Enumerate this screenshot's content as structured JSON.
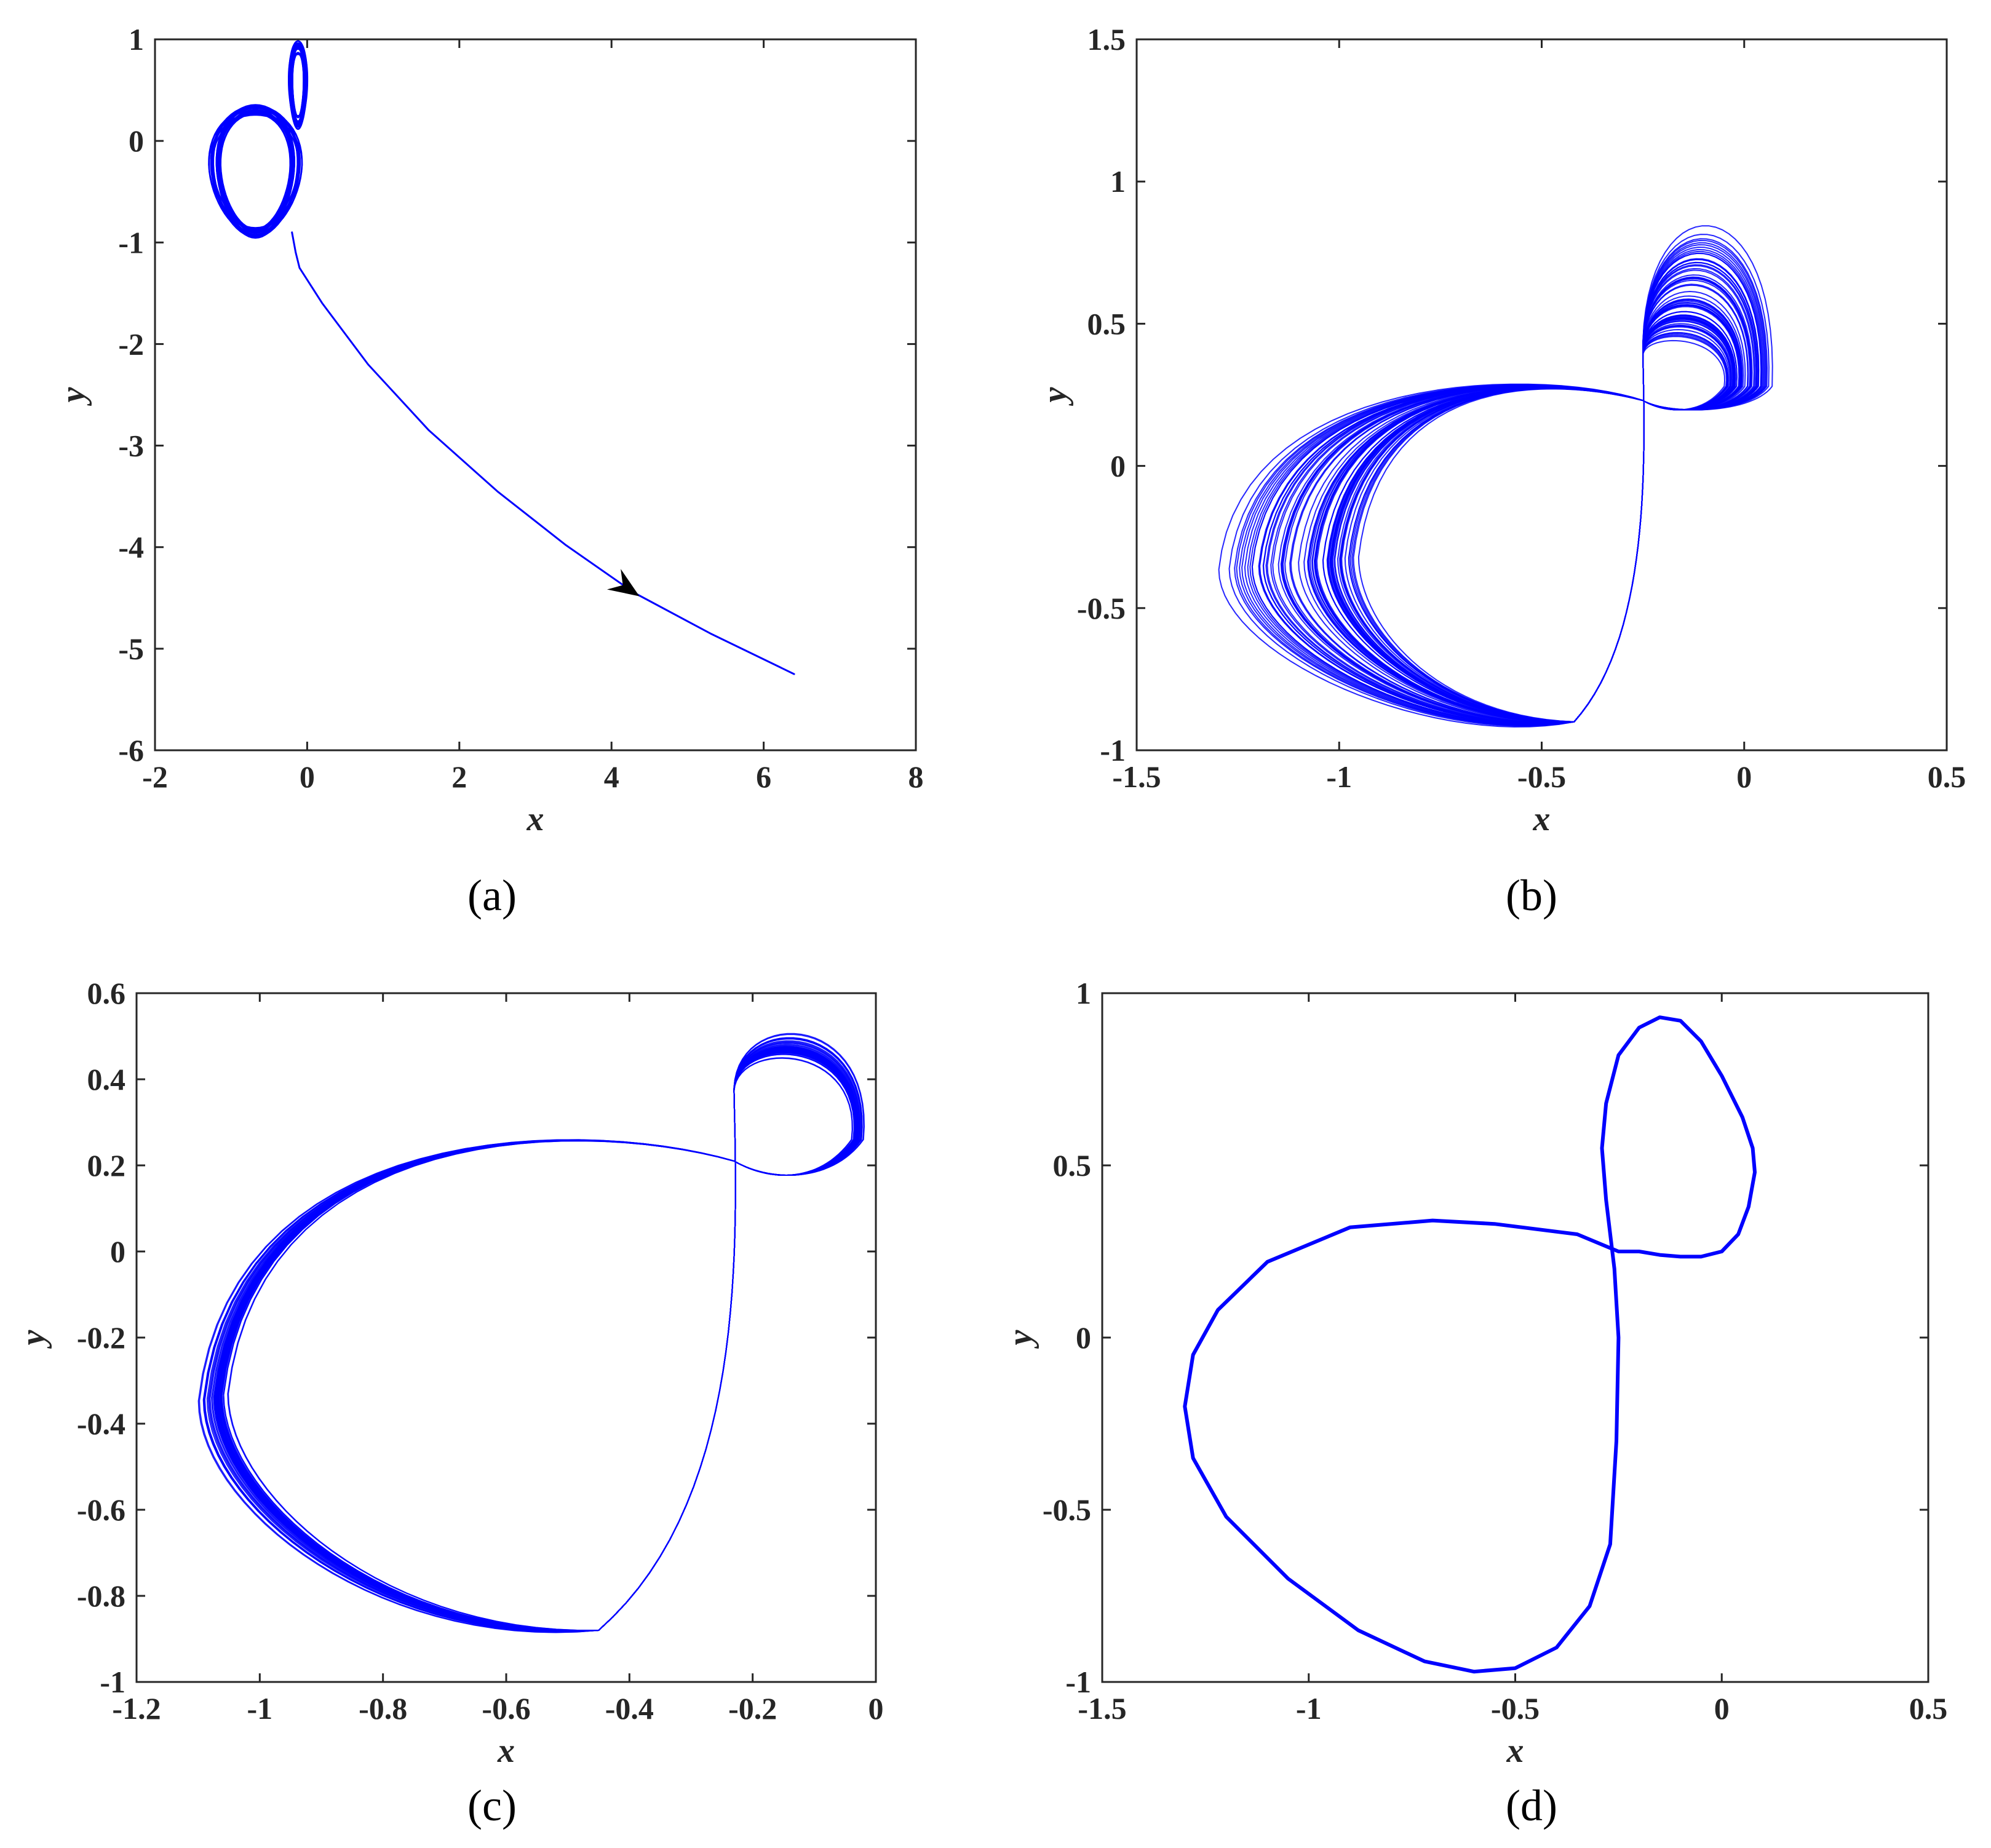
{
  "colors": {
    "series": "#0000ff",
    "axis": "#262626",
    "arrow": "#000000"
  },
  "chart_data": [
    {
      "id": "a",
      "type": "line",
      "panel_label": "(a)",
      "xlabel": "x",
      "ylabel": "y",
      "xlim": [
        -2,
        8
      ],
      "ylim": [
        -6,
        1
      ],
      "xticks": [
        -2,
        0,
        2,
        4,
        6,
        8
      ],
      "yticks": [
        -6,
        -5,
        -4,
        -3,
        -2,
        -1,
        0,
        1
      ],
      "annotations": [
        {
          "type": "arrow",
          "at": [
            4.3,
            -4.45
          ],
          "direction": "along-trajectory"
        }
      ],
      "series": [
        {
          "kind": "attractor-band",
          "loops": [
            {
              "center": [
                -0.68,
                -0.3
              ],
              "rx": [
                0.45,
                0.62
              ],
              "ry": [
                0.55,
                0.66
              ],
              "phase": 0.0
            },
            {
              "center": [
                -0.12,
                0.55
              ],
              "rx": [
                0.07,
                0.13
              ],
              "ry": [
                0.3,
                0.44
              ],
              "phase": 0.0
            }
          ]
        },
        {
          "kind": "transient",
          "x": [
            -0.2,
            -0.15,
            -0.1,
            0.2,
            0.8,
            1.6,
            2.5,
            3.4,
            4.3,
            5.3,
            6.4
          ],
          "y": [
            -0.9,
            -1.1,
            -1.25,
            -1.6,
            -2.2,
            -2.85,
            -3.45,
            -3.98,
            -4.45,
            -4.85,
            -5.25
          ]
        }
      ]
    },
    {
      "id": "b",
      "type": "line",
      "panel_label": "(b)",
      "xlabel": "x",
      "ylabel": "y",
      "xlim": [
        -1.5,
        0.5
      ],
      "ylim": [
        -1,
        1.5
      ],
      "xticks": [
        -1.5,
        -1,
        -0.5,
        0,
        0.5
      ],
      "yticks": [
        -1,
        -0.5,
        0,
        0.5,
        1,
        1.5
      ],
      "series": [
        {
          "kind": "attractor-band",
          "left_lobe": {
            "xmin": [
              -1.3,
              -0.95
            ],
            "ymin": [
              -0.97,
              -0.85
            ],
            "top": [
              0.34,
              0.31
            ]
          },
          "right_lobe": {
            "xmax": [
              0.07,
              -0.05
            ],
            "ymax": [
              1.0,
              0.45
            ]
          }
        }
      ]
    },
    {
      "id": "c",
      "type": "line",
      "panel_label": "(c)",
      "xlabel": "x",
      "ylabel": "y",
      "xlim": [
        -1.2,
        0
      ],
      "ylim": [
        -1,
        0.6
      ],
      "xticks": [
        -1.2,
        -1,
        -0.8,
        -0.6,
        -0.4,
        -0.2,
        0
      ],
      "yticks": [
        -1,
        -0.8,
        -0.6,
        -0.4,
        -0.2,
        0,
        0.2,
        0.4,
        0.6
      ],
      "series": [
        {
          "kind": "attractor-band",
          "left_lobe": {
            "xmin": [
              -1.1,
              -1.05
            ],
            "ymin": [
              -0.9,
              -0.86
            ],
            "top": [
              0.305,
              0.3
            ]
          },
          "right_lobe": {
            "xmax": [
              -0.02,
              -0.04
            ],
            "ymax": [
              0.55,
              0.47
            ]
          }
        }
      ]
    },
    {
      "id": "d",
      "type": "line",
      "panel_label": "(d)",
      "xlabel": "x",
      "ylabel": "y",
      "xlim": [
        -1.5,
        0.5
      ],
      "ylim": [
        -1,
        1
      ],
      "xticks": [
        -1.5,
        -1,
        -0.5,
        0,
        0.5
      ],
      "yticks": [
        -1,
        -0.5,
        0,
        0.5,
        1
      ],
      "series": [
        {
          "kind": "limit-cycle",
          "x": [
            -0.25,
            -0.35,
            -0.55,
            -0.7,
            -0.9,
            -1.1,
            -1.22,
            -1.28,
            -1.3,
            -1.28,
            -1.2,
            -1.05,
            -0.88,
            -0.72,
            -0.6,
            -0.5,
            -0.4,
            -0.32,
            -0.27,
            -0.255,
            -0.25,
            -0.26,
            -0.28,
            -0.29,
            -0.28,
            -0.25,
            -0.2,
            -0.15,
            -0.1,
            -0.05,
            0.0,
            0.05,
            0.075,
            0.08,
            0.065,
            0.04,
            0.0,
            -0.05,
            -0.1,
            -0.15,
            -0.2,
            -0.25
          ],
          "y": [
            0.25,
            0.3,
            0.33,
            0.34,
            0.32,
            0.22,
            0.08,
            -0.05,
            -0.2,
            -0.35,
            -0.52,
            -0.7,
            -0.85,
            -0.94,
            -0.97,
            -0.96,
            -0.9,
            -0.78,
            -0.6,
            -0.3,
            0.0,
            0.2,
            0.4,
            0.55,
            0.68,
            0.82,
            0.9,
            0.93,
            0.92,
            0.86,
            0.76,
            0.64,
            0.55,
            0.48,
            0.38,
            0.3,
            0.25,
            0.235,
            0.235,
            0.24,
            0.25,
            0.25
          ]
        }
      ]
    }
  ]
}
